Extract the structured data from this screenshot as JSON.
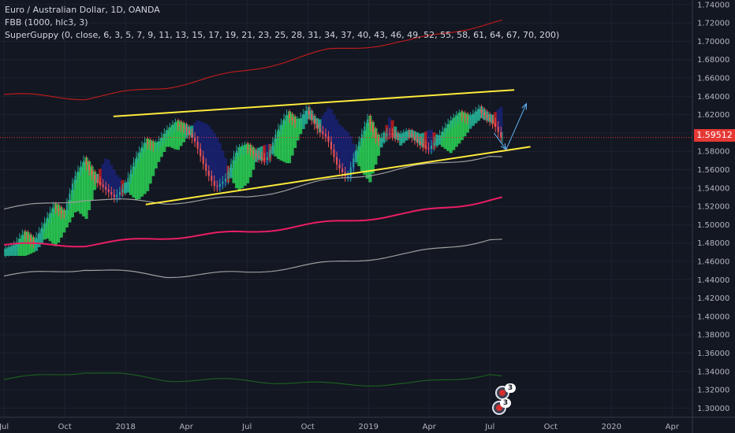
{
  "legend": {
    "symbol": "Euro / Australian Dollar, 1D, OANDA",
    "indicator1": "FBB (1000, hlc3, 3)",
    "indicator2": "SuperGuppy (0, close, 6, 3, 5, 7, 9, 11, 13, 15, 17, 19, 21, 23, 25, 28, 31, 34, 37, 40, 43, 46, 49, 52, 55, 58, 61, 64, 67, 70, 200)"
  },
  "last_price": "1.59512",
  "events": {
    "count_top": "3",
    "count_bottom": "3"
  },
  "colors": {
    "background": "#131722",
    "grid": "#1e2230",
    "candle_up": "#26a69a",
    "candle_down": "#ef5350",
    "upper_band": "#b71c1c",
    "basis": "#e91e63",
    "lower_band": "#9e9e9e",
    "bottom_band": "#1b5e20",
    "trendline": "#ffeb3b",
    "projection": "#64b5f6",
    "last_price_line": "#e53935"
  },
  "chart_data": {
    "type": "line",
    "title": "Euro / Australian Dollar, 1D, OANDA",
    "y_axis": {
      "ticks": [
        "1.74000",
        "1.72000",
        "1.70000",
        "1.68000",
        "1.66000",
        "1.64000",
        "1.62000",
        "1.60000",
        "1.58000",
        "1.56000",
        "1.54000",
        "1.52000",
        "1.50000",
        "1.48000",
        "1.46000",
        "1.44000",
        "1.42000",
        "1.40000",
        "1.38000",
        "1.36000",
        "1.34000",
        "1.32000",
        "1.30000"
      ],
      "range": [
        1.29,
        1.745
      ],
      "position": "right"
    },
    "x_axis": {
      "labels": [
        {
          "label": "Jul",
          "t": 0
        },
        {
          "label": "Oct",
          "t": 3
        },
        {
          "label": "2018",
          "t": 6
        },
        {
          "label": "Apr",
          "t": 9
        },
        {
          "label": "Jul",
          "t": 12
        },
        {
          "label": "Oct",
          "t": 15
        },
        {
          "label": "2019",
          "t": 18
        },
        {
          "label": "Apr",
          "t": 21
        },
        {
          "label": "Jul",
          "t": 24
        },
        {
          "label": "Oct",
          "t": 27
        },
        {
          "label": "2020",
          "t": 30
        },
        {
          "label": "Apr",
          "t": 33
        }
      ],
      "range": [
        -0.2,
        34.0
      ],
      "unit": "months since Jul 2017"
    },
    "price": {
      "t": [
        0,
        0.5,
        1,
        1.5,
        2,
        2.5,
        3,
        3.5,
        4,
        4.5,
        5,
        5.5,
        6,
        6.5,
        7,
        7.5,
        8,
        8.5,
        9,
        9.5,
        10,
        10.5,
        11,
        11.5,
        12,
        12.5,
        13,
        13.5,
        14,
        14.5,
        15,
        15.5,
        16,
        16.5,
        17,
        17.5,
        18,
        18.5,
        19,
        19.5,
        20,
        20.5,
        21,
        21.5,
        22,
        22.5,
        23,
        23.5,
        24,
        24.3,
        24.6
      ],
      "close": [
        1.47,
        1.475,
        1.49,
        1.48,
        1.5,
        1.52,
        1.51,
        1.55,
        1.57,
        1.55,
        1.54,
        1.53,
        1.54,
        1.57,
        1.59,
        1.585,
        1.6,
        1.61,
        1.605,
        1.59,
        1.56,
        1.54,
        1.55,
        1.58,
        1.585,
        1.575,
        1.57,
        1.6,
        1.62,
        1.61,
        1.625,
        1.605,
        1.595,
        1.565,
        1.55,
        1.585,
        1.615,
        1.59,
        1.6,
        1.595,
        1.6,
        1.59,
        1.582,
        1.595,
        1.61,
        1.62,
        1.615,
        1.625,
        1.615,
        1.608,
        1.595
      ]
    },
    "series": [
      {
        "role": "upper-band",
        "t": [
          0,
          4,
          8,
          12,
          16,
          20,
          24,
          24.6
        ],
        "values": [
          1.642,
          1.638,
          1.65,
          1.668,
          1.69,
          1.7,
          1.72,
          1.722
        ]
      },
      {
        "role": "basis",
        "t": [
          0,
          4,
          8,
          12,
          16,
          20,
          24,
          24.6
        ],
        "values": [
          1.478,
          1.478,
          1.486,
          1.492,
          1.502,
          1.512,
          1.527,
          1.529
        ]
      },
      {
        "role": "lower-band",
        "t": [
          0,
          4,
          8,
          12,
          16,
          20,
          24,
          24.6
        ],
        "values": [
          1.444,
          1.452,
          1.444,
          1.448,
          1.458,
          1.468,
          1.484,
          1.483
        ]
      },
      {
        "role": "bottom-band",
        "t": [
          0,
          4,
          8,
          12,
          16,
          20,
          24,
          24.6
        ],
        "values": [
          1.331,
          1.34,
          1.331,
          1.33,
          1.326,
          1.326,
          1.337,
          1.334
        ]
      },
      {
        "role": "ema200",
        "t": [
          0,
          4,
          8,
          12,
          16,
          20,
          24,
          24.6
        ],
        "values": [
          1.517,
          1.528,
          1.524,
          1.53,
          1.548,
          1.562,
          1.575,
          1.573
        ]
      }
    ],
    "trendlines": [
      {
        "role": "channel-top",
        "t": [
          5.4,
          25.2
        ],
        "values": [
          1.618,
          1.647
        ]
      },
      {
        "role": "channel-bottom",
        "t": [
          7.0,
          26.0
        ],
        "values": [
          1.522,
          1.585
        ]
      },
      {
        "role": "projection",
        "t": [
          24.2,
          24.8,
          25.8
        ],
        "values": [
          1.6,
          1.582,
          1.632
        ]
      }
    ],
    "grid": true,
    "legend_position": "top-left"
  }
}
